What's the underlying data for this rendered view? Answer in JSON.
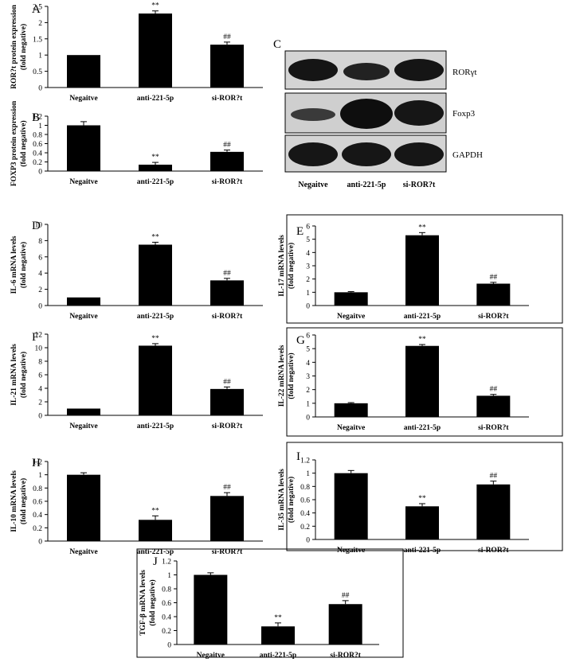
{
  "chart_data": [
    {
      "panel": "A",
      "type": "bar",
      "categories": [
        "Negaitve",
        "anti-221-5p",
        "si-ROR?t"
      ],
      "values": [
        1.0,
        2.28,
        1.32
      ],
      "errors": [
        0,
        0.08,
        0.08
      ],
      "annotations": [
        "",
        "**",
        "##"
      ],
      "ylabel": [
        "ROR?t protein expression",
        "(fold negative)"
      ],
      "ylim": [
        0,
        2.5
      ],
      "yticks": [
        "0",
        "0.5",
        "1",
        "1.5",
        "2",
        "2.5"
      ]
    },
    {
      "panel": "B",
      "type": "bar",
      "categories": [
        "Negaitve",
        "anti-221-5p",
        "si-ROR?t"
      ],
      "values": [
        1.0,
        0.14,
        0.42
      ],
      "errors": [
        0.08,
        0.05,
        0.04
      ],
      "annotations": [
        "",
        "**",
        "##"
      ],
      "ylabel": [
        "FOXP3 protein expression",
        "(fold negative)"
      ],
      "ylim": [
        0,
        1.2
      ],
      "yticks": [
        "0",
        "0.2",
        "0.4",
        "0.6",
        "0.8",
        "1",
        "1.2"
      ]
    },
    {
      "panel": "D",
      "type": "bar",
      "categories": [
        "Negaitve",
        "anti-221-5p",
        "si-ROR?t"
      ],
      "values": [
        1.0,
        7.5,
        3.1
      ],
      "errors": [
        0,
        0.3,
        0.25
      ],
      "annotations": [
        "",
        "**",
        "##"
      ],
      "ylabel": [
        "IL-6 mRNA levels",
        "(fold negative)"
      ],
      "ylim": [
        0,
        10
      ],
      "yticks": [
        "0",
        "2",
        "4",
        "6",
        "8",
        "10"
      ]
    },
    {
      "panel": "E",
      "type": "bar",
      "categories": [
        "Negaitve",
        "anti-221-5p",
        "si-ROR?t"
      ],
      "values": [
        1.0,
        5.3,
        1.65
      ],
      "errors": [
        0.05,
        0.2,
        0.1
      ],
      "annotations": [
        "",
        "**",
        "##"
      ],
      "ylabel": [
        "IL-17 mRNA levels",
        "(fold negative)"
      ],
      "ylim": [
        0,
        6
      ],
      "yticks": [
        "0",
        "1",
        "2",
        "3",
        "4",
        "5",
        "6"
      ]
    },
    {
      "panel": "F",
      "type": "bar",
      "categories": [
        "Negaitve",
        "anti-221-5p",
        "si-ROR?t"
      ],
      "values": [
        1.0,
        10.3,
        3.9
      ],
      "errors": [
        0,
        0.3,
        0.3
      ],
      "annotations": [
        "",
        "**",
        "##"
      ],
      "ylabel": [
        "IL-21 mRNA levels",
        "(fold negative)"
      ],
      "ylim": [
        0,
        12
      ],
      "yticks": [
        "0",
        "2",
        "4",
        "6",
        "8",
        "10",
        "12"
      ]
    },
    {
      "panel": "G",
      "type": "bar",
      "categories": [
        "Negaitve",
        "anti-221-5p",
        "si-ROR?t"
      ],
      "values": [
        1.0,
        5.2,
        1.55
      ],
      "errors": [
        0.05,
        0.1,
        0.1
      ],
      "annotations": [
        "",
        "**",
        "##"
      ],
      "ylabel": [
        "IL-22 mRNA levels",
        "(fold negative)"
      ],
      "ylim": [
        0,
        6
      ],
      "yticks": [
        "0",
        "1",
        "2",
        "3",
        "4",
        "5",
        "6"
      ]
    },
    {
      "panel": "H",
      "type": "bar",
      "categories": [
        "Negaitve",
        "anti-221-5p",
        "si-ROR?t"
      ],
      "values": [
        1.0,
        0.32,
        0.68
      ],
      "errors": [
        0.03,
        0.06,
        0.05
      ],
      "annotations": [
        "",
        "**",
        "##"
      ],
      "ylabel": [
        "IL-10 mRNA levels",
        "(fold negative)"
      ],
      "ylim": [
        0,
        1.2
      ],
      "yticks": [
        "0",
        "0.2",
        "0.4",
        "0.6",
        "0.8",
        "1",
        "1.2"
      ]
    },
    {
      "panel": "I",
      "type": "bar",
      "categories": [
        "Negaitve",
        "anti-221-5p",
        "si-ROR?t"
      ],
      "values": [
        1.0,
        0.5,
        0.83
      ],
      "errors": [
        0.04,
        0.04,
        0.05
      ],
      "annotations": [
        "",
        "**",
        "##"
      ],
      "ylabel": [
        "IL-35 mRNA levels",
        "(fold negative)"
      ],
      "ylim": [
        0,
        1.2
      ],
      "yticks": [
        "0",
        "0.2",
        "0.4",
        "0.6",
        "0.8",
        "1",
        "1.2"
      ]
    },
    {
      "panel": "J",
      "type": "bar",
      "categories": [
        "Negaitve",
        "anti-221-5p",
        "si-ROR?t"
      ],
      "values": [
        1.0,
        0.26,
        0.58
      ],
      "errors": [
        0.03,
        0.05,
        0.05
      ],
      "annotations": [
        "",
        "**",
        "##"
      ],
      "ylabel": [
        "TGF-β mRNA levels",
        "(fold negative)"
      ],
      "ylim": [
        0,
        1.2
      ],
      "yticks": [
        "0",
        "0.2",
        "0.4",
        "0.6",
        "0.8",
        "1",
        "1.2"
      ]
    }
  ],
  "blot": {
    "panel": "C",
    "bands": [
      "RORγt",
      "Foxp3",
      "GAPDH"
    ],
    "lanes": [
      "Negaitve",
      "anti-221-5p",
      "si-ROR?t"
    ]
  }
}
